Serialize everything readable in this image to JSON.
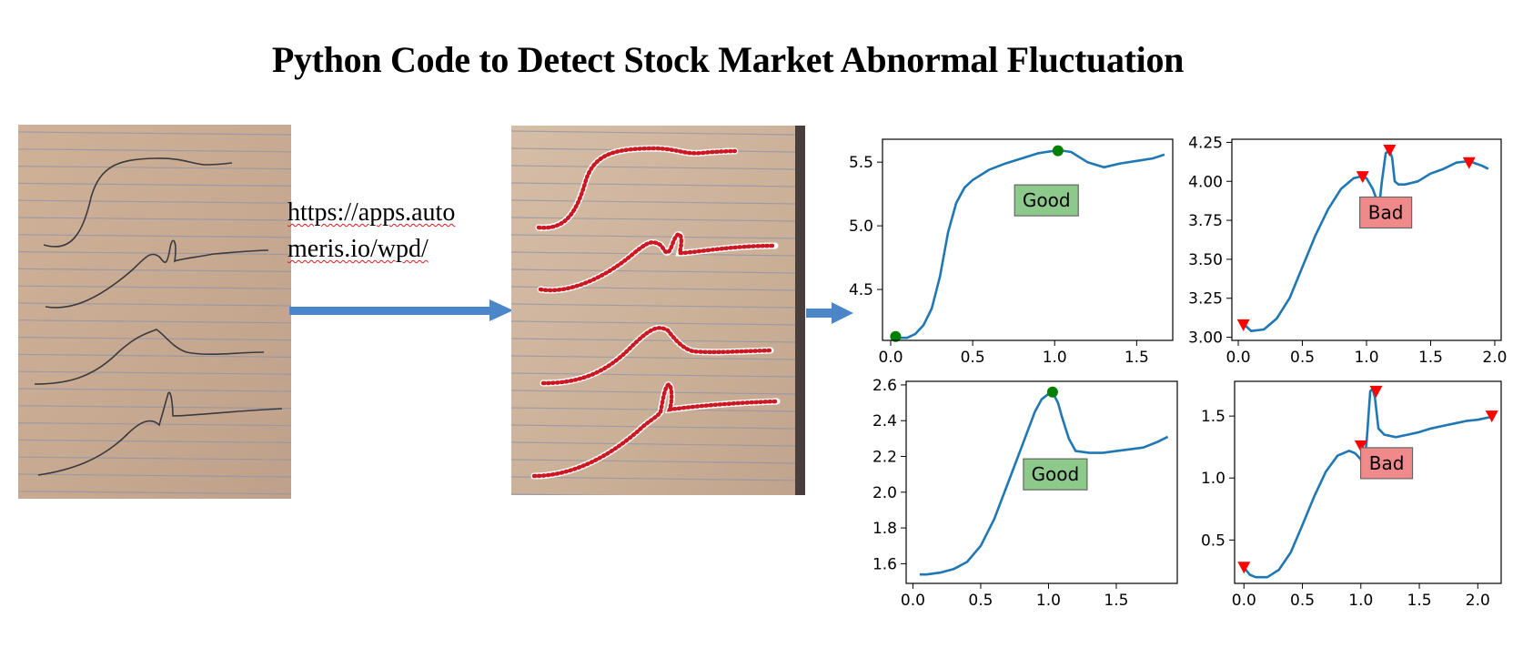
{
  "title": "Python Code to Detect Stock Market Abnormal Fluctuation",
  "url_text": {
    "line1": "https://apps.auto",
    "line2": "meris.io/wpd/"
  },
  "colors": {
    "line": "#1f77b4",
    "good_marker": "#008000",
    "bad_marker": "#ff0000",
    "good_box": "#8cc98a",
    "bad_box": "#f08a8a",
    "arrow": "#4a86c8"
  },
  "chart_data": [
    {
      "type": "line",
      "label": "Good",
      "label_box": "good",
      "xlim": [
        -0.05,
        1.72
      ],
      "ylim": [
        4.1,
        5.68
      ],
      "xticks": [
        0.0,
        0.5,
        1.0,
        1.5
      ],
      "yticks": [
        4.5,
        5.0,
        5.5
      ],
      "xtick_labels": [
        "0.0",
        "0.5",
        "1.0",
        "1.5"
      ],
      "ytick_labels": [
        "4.5",
        "5.0",
        "5.5"
      ],
      "x": [
        0.02,
        0.05,
        0.1,
        0.15,
        0.2,
        0.25,
        0.3,
        0.35,
        0.4,
        0.45,
        0.5,
        0.6,
        0.7,
        0.8,
        0.9,
        1.0,
        1.05,
        1.1,
        1.2,
        1.3,
        1.4,
        1.5,
        1.6,
        1.67
      ],
      "y": [
        4.13,
        4.12,
        4.12,
        4.15,
        4.22,
        4.35,
        4.6,
        4.95,
        5.18,
        5.3,
        5.36,
        5.44,
        5.49,
        5.53,
        5.57,
        5.59,
        5.59,
        5.58,
        5.5,
        5.46,
        5.49,
        5.51,
        5.53,
        5.56
      ],
      "markers": {
        "shape": "circle",
        "x": [
          0.03,
          1.02
        ],
        "y": [
          4.13,
          5.59
        ]
      },
      "label_pos": [
        0.95,
        5.2
      ]
    },
    {
      "type": "line",
      "label": "Bad",
      "label_box": "bad",
      "xlim": [
        -0.05,
        2.05
      ],
      "ylim": [
        2.98,
        4.27
      ],
      "xticks": [
        0.0,
        0.5,
        1.0,
        1.5,
        2.0
      ],
      "yticks": [
        3.0,
        3.25,
        3.5,
        3.75,
        4.0,
        4.25
      ],
      "xtick_labels": [
        "0.0",
        "0.5",
        "1.0",
        "1.5",
        "2.0"
      ],
      "ytick_labels": [
        "3.00",
        "3.25",
        "3.50",
        "3.75",
        "4.00",
        "4.25"
      ],
      "x": [
        0.05,
        0.1,
        0.2,
        0.3,
        0.4,
        0.5,
        0.6,
        0.7,
        0.8,
        0.9,
        0.95,
        1.0,
        1.05,
        1.08,
        1.1,
        1.12,
        1.15,
        1.18,
        1.2,
        1.22,
        1.25,
        1.3,
        1.4,
        1.5,
        1.6,
        1.7,
        1.8,
        1.9,
        1.95
      ],
      "y": [
        3.08,
        3.04,
        3.05,
        3.12,
        3.25,
        3.45,
        3.65,
        3.82,
        3.95,
        4.02,
        4.03,
        4.02,
        3.95,
        3.88,
        3.85,
        4.0,
        4.18,
        4.2,
        4.15,
        4.0,
        3.98,
        3.98,
        4.0,
        4.05,
        4.08,
        4.12,
        4.13,
        4.1,
        4.08
      ],
      "markers": {
        "shape": "triangle-down",
        "x": [
          0.04,
          0.97,
          1.18,
          1.8
        ],
        "y": [
          3.08,
          4.03,
          4.2,
          4.12
        ]
      },
      "label_pos": [
        1.15,
        3.8
      ]
    },
    {
      "type": "line",
      "label": "Good",
      "label_box": "good",
      "xlim": [
        -0.05,
        1.95
      ],
      "ylim": [
        1.49,
        2.62
      ],
      "xticks": [
        0.0,
        0.5,
        1.0,
        1.5
      ],
      "yticks": [
        1.6,
        1.8,
        2.0,
        2.2,
        2.4,
        2.6
      ],
      "xtick_labels": [
        "0.0",
        "0.5",
        "1.0",
        "1.5"
      ],
      "ytick_labels": [
        "1.6",
        "1.8",
        "2.0",
        "2.2",
        "2.4",
        "2.6"
      ],
      "x": [
        0.05,
        0.1,
        0.2,
        0.3,
        0.4,
        0.5,
        0.6,
        0.7,
        0.8,
        0.9,
        0.95,
        1.0,
        1.03,
        1.07,
        1.1,
        1.15,
        1.2,
        1.3,
        1.4,
        1.5,
        1.6,
        1.7,
        1.8,
        1.88
      ],
      "y": [
        1.54,
        1.54,
        1.55,
        1.57,
        1.61,
        1.7,
        1.85,
        2.05,
        2.25,
        2.45,
        2.52,
        2.55,
        2.56,
        2.5,
        2.42,
        2.3,
        2.23,
        2.22,
        2.22,
        2.23,
        2.24,
        2.25,
        2.28,
        2.31
      ],
      "markers": {
        "shape": "circle",
        "x": [
          1.03
        ],
        "y": [
          2.56
        ]
      },
      "label_pos": [
        1.05,
        2.1
      ]
    },
    {
      "type": "line",
      "label": "Bad",
      "label_box": "bad",
      "xlim": [
        -0.08,
        2.2
      ],
      "ylim": [
        0.15,
        1.78
      ],
      "xticks": [
        0.0,
        0.5,
        1.0,
        1.5,
        2.0
      ],
      "yticks": [
        0.5,
        1.0,
        1.5
      ],
      "xtick_labels": [
        "0.0",
        "0.5",
        "1.0",
        "1.5",
        "2.0"
      ],
      "ytick_labels": [
        "0.5",
        "1.0",
        "1.5"
      ],
      "x": [
        0.0,
        0.05,
        0.1,
        0.2,
        0.3,
        0.4,
        0.5,
        0.6,
        0.7,
        0.8,
        0.9,
        0.95,
        1.0,
        1.02,
        1.05,
        1.08,
        1.1,
        1.12,
        1.15,
        1.2,
        1.3,
        1.4,
        1.5,
        1.6,
        1.7,
        1.8,
        1.9,
        2.0,
        2.1
      ],
      "y": [
        0.28,
        0.22,
        0.2,
        0.2,
        0.26,
        0.4,
        0.62,
        0.85,
        1.05,
        1.18,
        1.22,
        1.2,
        1.15,
        1.05,
        1.3,
        1.7,
        1.72,
        1.65,
        1.4,
        1.35,
        1.33,
        1.35,
        1.37,
        1.4,
        1.42,
        1.44,
        1.46,
        1.47,
        1.49
      ],
      "markers": {
        "shape": "triangle-down",
        "x": [
          0.0,
          1.0,
          1.13,
          2.12
        ],
        "y": [
          0.28,
          1.26,
          1.7,
          1.5
        ]
      },
      "label_pos": [
        1.22,
        1.12
      ]
    }
  ]
}
